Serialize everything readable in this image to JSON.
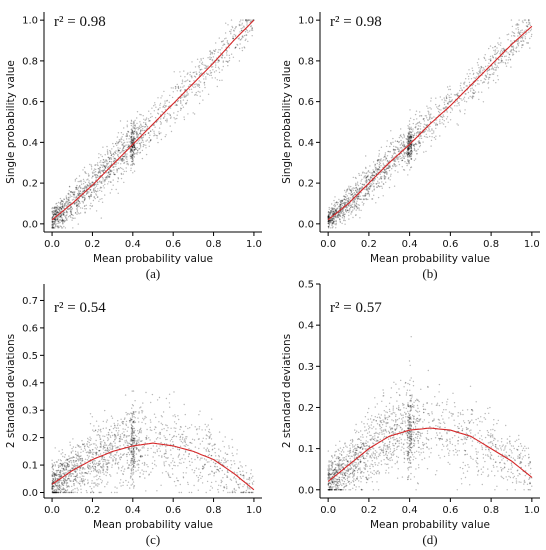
{
  "chart_data": [
    {
      "id": "a",
      "type": "scatter",
      "panel_label": "(a)",
      "annotation": "r² = 0.98",
      "xlabel": "Mean probability value",
      "ylabel": "Single probability value",
      "xlim": [
        -0.04,
        1.04
      ],
      "ylim": [
        -0.04,
        1.04
      ],
      "xticks": [
        "0.0",
        "0.2",
        "0.4",
        "0.6",
        "0.8",
        "1.0"
      ],
      "yticks": [
        "0.0",
        "0.2",
        "0.4",
        "0.6",
        "0.8",
        "1.0"
      ],
      "xtick_values": [
        0,
        0.2,
        0.4,
        0.6,
        0.8,
        1.0
      ],
      "ytick_values": [
        0,
        0.2,
        0.4,
        0.6,
        0.8,
        1.0
      ],
      "fit_line": {
        "color": "#d62728",
        "x": [
          0,
          0.1,
          0.2,
          0.3,
          0.4,
          0.5,
          0.6,
          0.7,
          0.8,
          0.9,
          1.0
        ],
        "y": [
          0.02,
          0.1,
          0.19,
          0.29,
          0.39,
          0.49,
          0.59,
          0.69,
          0.79,
          0.9,
          1.0
        ]
      },
      "point_color": "#000000",
      "scatter_model": {
        "kind": "identity",
        "spread": 0.07
      }
    },
    {
      "id": "b",
      "type": "scatter",
      "panel_label": "(b)",
      "annotation": "r² = 0.98",
      "xlabel": "Mean probability value",
      "ylabel": "Single probability value",
      "xlim": [
        -0.04,
        1.04
      ],
      "ylim": [
        -0.04,
        1.04
      ],
      "xticks": [
        "0.0",
        "0.2",
        "0.4",
        "0.6",
        "0.8",
        "1.0"
      ],
      "yticks": [
        "0.0",
        "0.2",
        "0.4",
        "0.6",
        "0.8",
        "1.0"
      ],
      "xtick_values": [
        0,
        0.2,
        0.4,
        0.6,
        0.8,
        1.0
      ],
      "ytick_values": [
        0,
        0.2,
        0.4,
        0.6,
        0.8,
        1.0
      ],
      "fit_line": {
        "color": "#d62728",
        "x": [
          0,
          0.1,
          0.2,
          0.3,
          0.4,
          0.5,
          0.6,
          0.7,
          0.8,
          0.9,
          1.0
        ],
        "y": [
          0.02,
          0.1,
          0.2,
          0.3,
          0.39,
          0.49,
          0.58,
          0.68,
          0.78,
          0.88,
          0.97
        ]
      },
      "point_color": "#000000",
      "scatter_model": {
        "kind": "identity",
        "spread": 0.06
      }
    },
    {
      "id": "c",
      "type": "scatter",
      "panel_label": "(c)",
      "annotation": "r² = 0.54",
      "xlabel": "Mean probability value",
      "ylabel": "2 standard deviations",
      "xlim": [
        -0.04,
        1.04
      ],
      "ylim": [
        -0.02,
        0.76
      ],
      "xticks": [
        "0.0",
        "0.2",
        "0.4",
        "0.6",
        "0.8",
        "1.0"
      ],
      "yticks": [
        "0.0",
        "0.1",
        "0.2",
        "0.3",
        "0.4",
        "0.5",
        "0.6",
        "0.7"
      ],
      "xtick_values": [
        0,
        0.2,
        0.4,
        0.6,
        0.8,
        1.0
      ],
      "ytick_values": [
        0,
        0.1,
        0.2,
        0.3,
        0.4,
        0.5,
        0.6,
        0.7
      ],
      "fit_line": {
        "color": "#d62728",
        "x": [
          0,
          0.1,
          0.2,
          0.3,
          0.4,
          0.5,
          0.6,
          0.7,
          0.8,
          0.9,
          1.0
        ],
        "y": [
          0.03,
          0.08,
          0.12,
          0.15,
          0.17,
          0.18,
          0.17,
          0.15,
          0.12,
          0.07,
          0.01
        ]
      },
      "point_color": "#000000",
      "scatter_model": {
        "kind": "arch",
        "spread": 0.06
      }
    },
    {
      "id": "d",
      "type": "scatter",
      "panel_label": "(d)",
      "annotation": "r² = 0.57",
      "xlabel": "Mean probability value",
      "ylabel": "2 standard deviations",
      "xlim": [
        -0.04,
        1.04
      ],
      "ylim": [
        -0.02,
        0.5
      ],
      "xticks": [
        "0.0",
        "0.2",
        "0.4",
        "0.6",
        "0.8",
        "1.0"
      ],
      "yticks": [
        "0.0",
        "0.1",
        "0.2",
        "0.3",
        "0.4",
        "0.5"
      ],
      "xtick_values": [
        0,
        0.2,
        0.4,
        0.6,
        0.8,
        1.0
      ],
      "ytick_values": [
        0,
        0.1,
        0.2,
        0.3,
        0.4,
        0.5
      ],
      "fit_line": {
        "color": "#d62728",
        "x": [
          0,
          0.1,
          0.2,
          0.3,
          0.4,
          0.5,
          0.6,
          0.7,
          0.8,
          0.9,
          1.0
        ],
        "y": [
          0.02,
          0.06,
          0.1,
          0.13,
          0.145,
          0.15,
          0.145,
          0.13,
          0.1,
          0.07,
          0.03
        ]
      },
      "point_color": "#000000",
      "scatter_model": {
        "kind": "arch",
        "spread": 0.045
      }
    }
  ]
}
